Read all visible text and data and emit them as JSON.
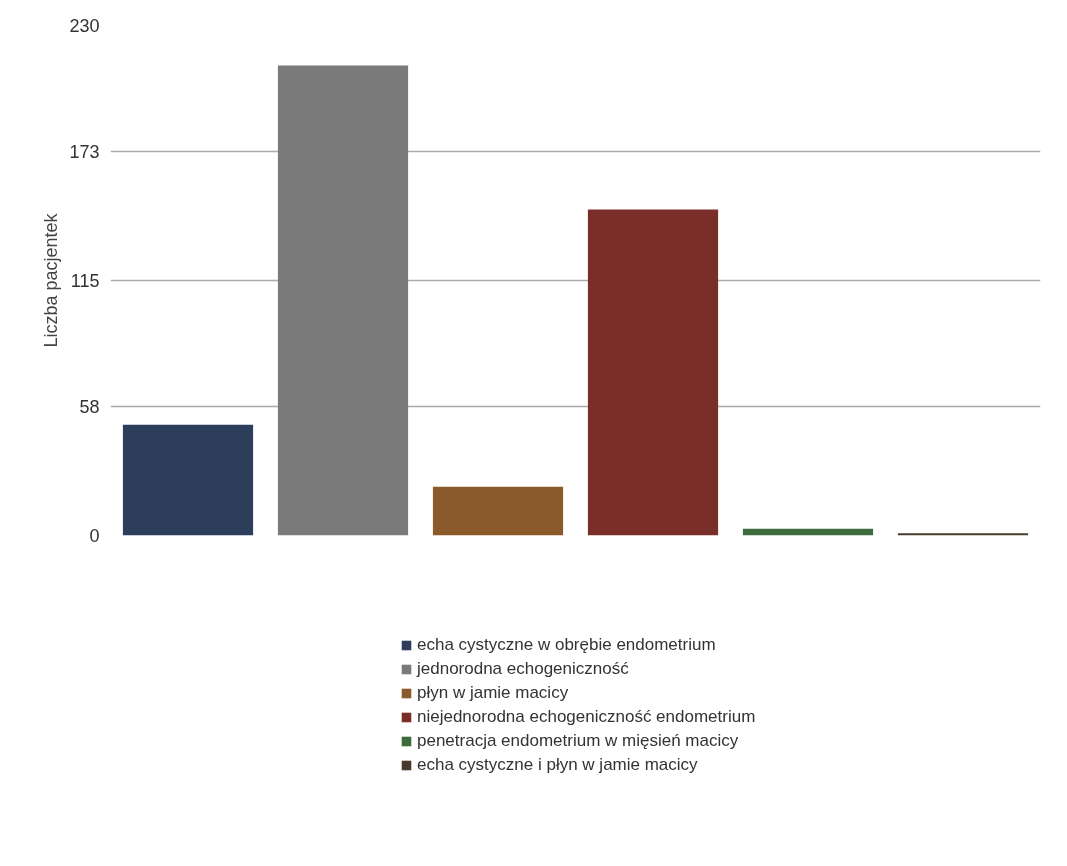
{
  "chart_data": {
    "type": "bar",
    "ylabel": "Liczba pacjentek",
    "categories": [
      null,
      null,
      null,
      null,
      null,
      null
    ],
    "series": [
      {
        "name": "echa cystyczne w obrębie endometrium",
        "color": "#2c3e5c",
        "values": [
          50,
          null,
          null,
          null,
          null,
          null
        ]
      },
      {
        "name": "jednorodna echogeniczność",
        "color": "#7a7a7a",
        "values": [
          null,
          212,
          null,
          null,
          null,
          null
        ]
      },
      {
        "name": "płyn w jamie macicy",
        "color": "#8b5a2b",
        "values": [
          null,
          null,
          22,
          null,
          null,
          null
        ]
      },
      {
        "name": "niejednorodna echogeniczność endometrium",
        "color": "#7a2e2a",
        "values": [
          null,
          null,
          null,
          147,
          null,
          null
        ]
      },
      {
        "name": "penetracja endometrium w mięsień macicy",
        "color": "#3d6b3d",
        "values": [
          null,
          null,
          null,
          null,
          3,
          null
        ]
      },
      {
        "name": "echa cystyczne i płyn w jamie macicy",
        "color": "#4a3a2a",
        "values": [
          null,
          null,
          null,
          null,
          null,
          1
        ]
      }
    ],
    "ylim": [
      0,
      230
    ],
    "yticks": [
      0,
      58,
      115,
      173,
      230
    ],
    "grid": "y",
    "legend": "bottom",
    "tick_labels": "y"
  }
}
